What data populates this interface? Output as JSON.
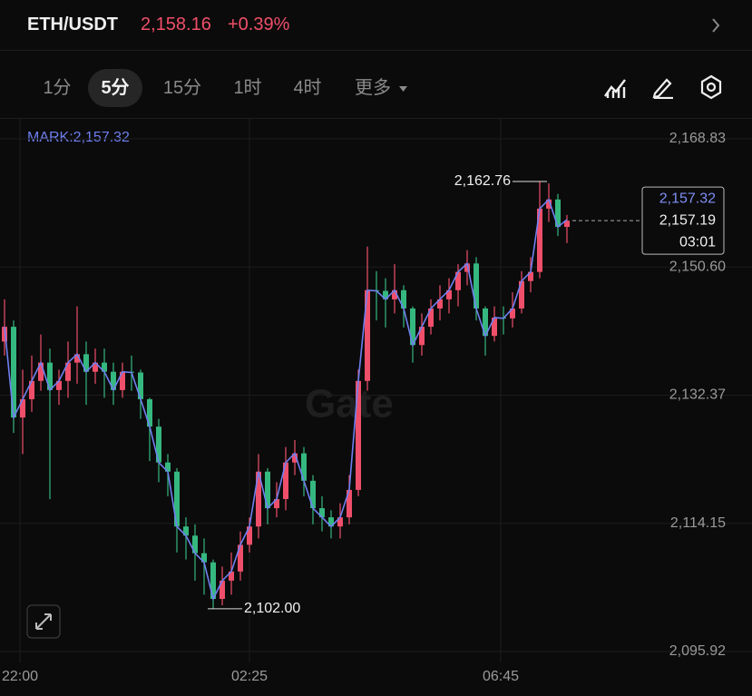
{
  "header": {
    "pair": "ETH/USDT",
    "price": "2,158.16",
    "change": "+0.39%"
  },
  "tabs": [
    "1分",
    "5分",
    "15分",
    "1时",
    "4时",
    "更多"
  ],
  "selected_tab": 1,
  "chart_data": {
    "type": "candlestick",
    "mark_label": "MARK:2,157.32",
    "mark_price": "2,157.32",
    "last_price": {
      "value": 2157.19,
      "label": "2,157.19"
    },
    "countdown": "03:01",
    "watermark": "Gate",
    "annotations": {
      "high": "2,162.76",
      "low": "2,102.00"
    },
    "up_color": "#ef4f6a",
    "down_color": "#35b87f",
    "mark_color": "#7080f0",
    "ylim": [
      2094.37,
      2171.79
    ],
    "yticks": [
      {
        "value": 2168.83,
        "label": "2,168.83"
      },
      {
        "value": 2150.6,
        "label": "2,150.60"
      },
      {
        "value": 2132.37,
        "label": "2,132.37"
      },
      {
        "value": 2114.15,
        "label": "2,114.15"
      },
      {
        "value": 2095.92,
        "label": "2,095.92"
      }
    ],
    "xticks": [
      {
        "value": 1.7,
        "label": "22:00"
      },
      {
        "value": 27,
        "label": "02:25"
      },
      {
        "value": 54.7,
        "label": "06:45"
      }
    ],
    "grid": true,
    "candles": [
      [
        2140.0,
        2146,
        2138,
        2142.1
      ],
      [
        2142.1,
        2143,
        2127,
        2129.2
      ],
      [
        2129.2,
        2136,
        2124,
        2131.8
      ],
      [
        2131.8,
        2138,
        2130,
        2134.4
      ],
      [
        2134.4,
        2141,
        2133,
        2137.0
      ],
      [
        2137.0,
        2139,
        2117.6,
        2133.1
      ],
      [
        2133.1,
        2136,
        2131,
        2134.4
      ],
      [
        2134.4,
        2140,
        2132,
        2137.0
      ],
      [
        2137.0,
        2145,
        2134,
        2138.2
      ],
      [
        2138.2,
        2140,
        2131,
        2135.7
      ],
      [
        2135.7,
        2139,
        2134,
        2137.0
      ],
      [
        2137.0,
        2139,
        2132,
        2135.7
      ],
      [
        2135.7,
        2137,
        2131,
        2133.1
      ],
      [
        2133.1,
        2137,
        2132,
        2135.7
      ],
      [
        2135.7,
        2138,
        2133,
        2135.6
      ],
      [
        2135.6,
        2136,
        2129,
        2131.8
      ],
      [
        2131.8,
        2132,
        2123,
        2127.9
      ],
      [
        2127.9,
        2129,
        2120,
        2122.8
      ],
      [
        2122.8,
        2124,
        2118,
        2121.5
      ],
      [
        2121.5,
        2122,
        2110,
        2113.7
      ],
      [
        2113.7,
        2115,
        2109,
        2112.4
      ],
      [
        2112.4,
        2114,
        2106,
        2109.9
      ],
      [
        2109.9,
        2112,
        2104,
        2108.6
      ],
      [
        2108.6,
        2109,
        2102.0,
        2103.4
      ],
      [
        2103.4,
        2108,
        2102.5,
        2106.0
      ],
      [
        2106.0,
        2110,
        2104,
        2107.3
      ],
      [
        2107.3,
        2113,
        2106,
        2111.1
      ],
      [
        2111.1,
        2115,
        2110,
        2113.7
      ],
      [
        2113.7,
        2124,
        2112,
        2121.5
      ],
      [
        2121.5,
        2122,
        2114,
        2116.3
      ],
      [
        2116.3,
        2120,
        2115,
        2117.6
      ],
      [
        2117.6,
        2125,
        2116,
        2122.8
      ],
      [
        2122.8,
        2126,
        2121,
        2124.1
      ],
      [
        2124.1,
        2125,
        2118,
        2120.2
      ],
      [
        2120.2,
        2121,
        2114,
        2116.3
      ],
      [
        2116.3,
        2118,
        2113,
        2115.0
      ],
      [
        2115.0,
        2116,
        2112,
        2113.7
      ],
      [
        2113.7,
        2117,
        2112,
        2115.0
      ],
      [
        2115.0,
        2121,
        2114,
        2118.9
      ],
      [
        2118.9,
        2136,
        2118,
        2134.4
      ],
      [
        2134.4,
        2153.5,
        2133,
        2147.3
      ],
      [
        2147.3,
        2150,
        2143,
        2147.2
      ],
      [
        2147.2,
        2149,
        2142,
        2146.0
      ],
      [
        2146.0,
        2151,
        2144,
        2147.3
      ],
      [
        2147.3,
        2148,
        2142,
        2144.7
      ],
      [
        2144.7,
        2145,
        2137,
        2139.5
      ],
      [
        2139.5,
        2144,
        2138,
        2142.1
      ],
      [
        2142.1,
        2146,
        2141,
        2144.7
      ],
      [
        2144.7,
        2148,
        2143,
        2146.0
      ],
      [
        2146.0,
        2149,
        2144,
        2147.3
      ],
      [
        2147.3,
        2151,
        2145,
        2149.9
      ],
      [
        2149.9,
        2153,
        2148,
        2151.1
      ],
      [
        2151.1,
        2152,
        2143,
        2144.7
      ],
      [
        2144.7,
        2145,
        2138,
        2140.8
      ],
      [
        2140.8,
        2145,
        2140,
        2143.4
      ],
      [
        2143.4,
        2145,
        2141,
        2143.3
      ],
      [
        2143.3,
        2147,
        2142,
        2144.7
      ],
      [
        2144.7,
        2150,
        2144,
        2148.6
      ],
      [
        2148.6,
        2152,
        2147,
        2149.9
      ],
      [
        2149.9,
        2162.76,
        2149,
        2158.9
      ],
      [
        2158.9,
        2162.5,
        2157,
        2160.2
      ],
      [
        2160.2,
        2161,
        2155,
        2156.3
      ],
      [
        2156.3,
        2158,
        2154,
        2157.19
      ]
    ],
    "mark_line": [
      2142.1,
      2129.2,
      2131.8,
      2134.4,
      2137.0,
      2133.1,
      2134.4,
      2137.0,
      2138.2,
      2135.7,
      2137.0,
      2135.7,
      2133.1,
      2135.7,
      2135.6,
      2131.8,
      2127.9,
      2122.8,
      2121.5,
      2113.7,
      2112.4,
      2109.9,
      2108.6,
      2103.4,
      2106.0,
      2107.3,
      2111.1,
      2113.7,
      2121.5,
      2116.3,
      2117.6,
      2122.8,
      2124.1,
      2120.2,
      2116.3,
      2115.0,
      2113.7,
      2115.0,
      2118.9,
      2134.4,
      2147.3,
      2147.2,
      2146.0,
      2147.3,
      2144.7,
      2139.5,
      2142.1,
      2144.7,
      2146.0,
      2147.3,
      2149.9,
      2151.1,
      2144.7,
      2140.8,
      2143.4,
      2143.3,
      2144.7,
      2148.6,
      2149.9,
      2158.9,
      2160.2,
      2156.3,
      2157.32
    ]
  }
}
